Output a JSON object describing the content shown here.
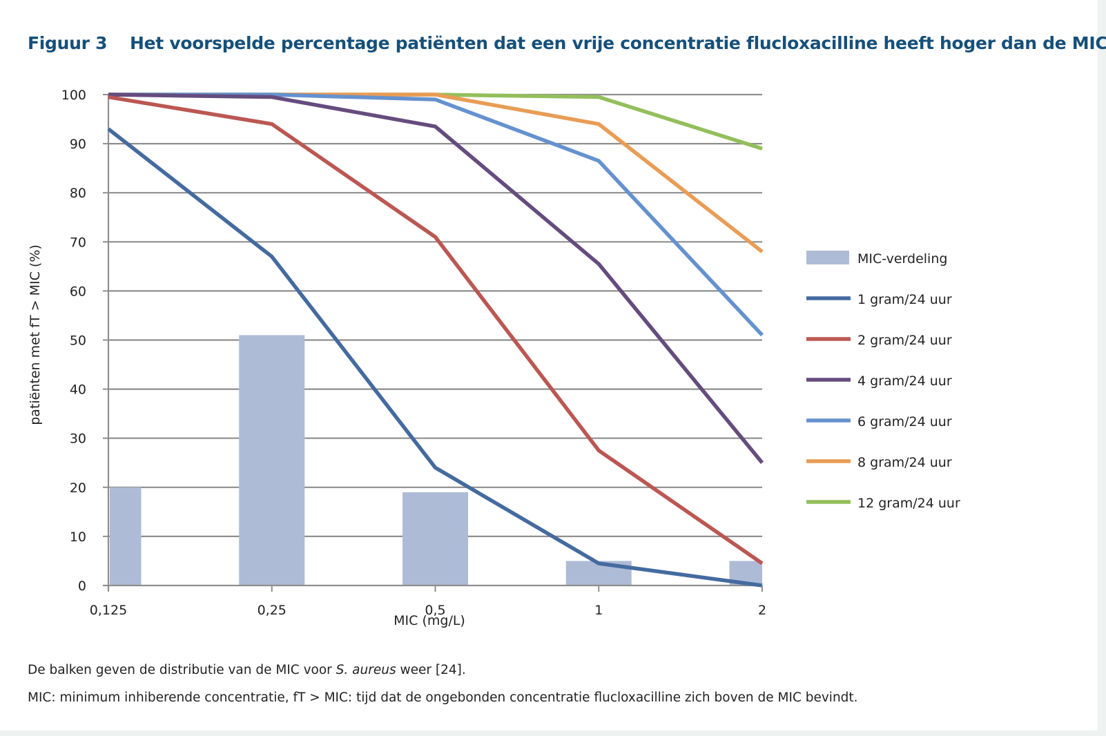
{
  "figure": {
    "label": "Figuur 3",
    "title": "Het voorspelde percentage patiënten dat een vrije concentratie flucloxacilline heeft hoger dan de MIC"
  },
  "chart_data": {
    "type": "bar+line",
    "title": "Het voorspelde percentage patiënten dat een vrije concentratie flucloxacilline heeft hoger dan de MIC",
    "xlabel": "MIC (mg/L)",
    "ylabel": "patiënten met fT > MIC (%)",
    "categories": [
      "0,125",
      "0,25",
      "0,5",
      "1",
      "2"
    ],
    "ylim": [
      0,
      100
    ],
    "yticks": [
      0,
      10,
      20,
      30,
      40,
      50,
      60,
      70,
      80,
      90,
      100
    ],
    "grid": true,
    "legend_position": "right",
    "bars": {
      "name": "MIC-verdeling",
      "color": "#aebbd6",
      "values": [
        20,
        51,
        19,
        5,
        5
      ]
    },
    "series": [
      {
        "name": "1 gram/24 uur",
        "color": "#446ba0",
        "values": [
          93,
          67,
          24,
          4.5,
          0
        ]
      },
      {
        "name": "2 gram/24 uur",
        "color": "#bb5752",
        "values": [
          99.5,
          94,
          71,
          27.5,
          4.5
        ]
      },
      {
        "name": "4 gram/24 uur",
        "color": "#654c7e",
        "values": [
          100,
          99.5,
          93.5,
          65.5,
          25
        ]
      },
      {
        "name": "6 gram/24 uur",
        "color": "#6591cf",
        "values": [
          100,
          100,
          99,
          86.5,
          51
        ]
      },
      {
        "name": "8 gram/24 uur",
        "color": "#e99c55",
        "values": [
          100,
          100,
          100,
          94,
          68
        ]
      },
      {
        "name": "12 gram/24 uur",
        "color": "#93bf5b",
        "values": [
          100,
          100,
          100,
          99.5,
          89
        ]
      }
    ]
  },
  "footnotes": {
    "line1_before": "De balken geven de distributie van de MIC voor ",
    "line1_italic": "S. aureus",
    "line1_after": " weer [24].",
    "line2": "MIC: minimum inhiberende concentratie, fT > MIC: tijd dat de ongebonden concentratie flucloxacilline zich boven de MIC bevindt."
  }
}
